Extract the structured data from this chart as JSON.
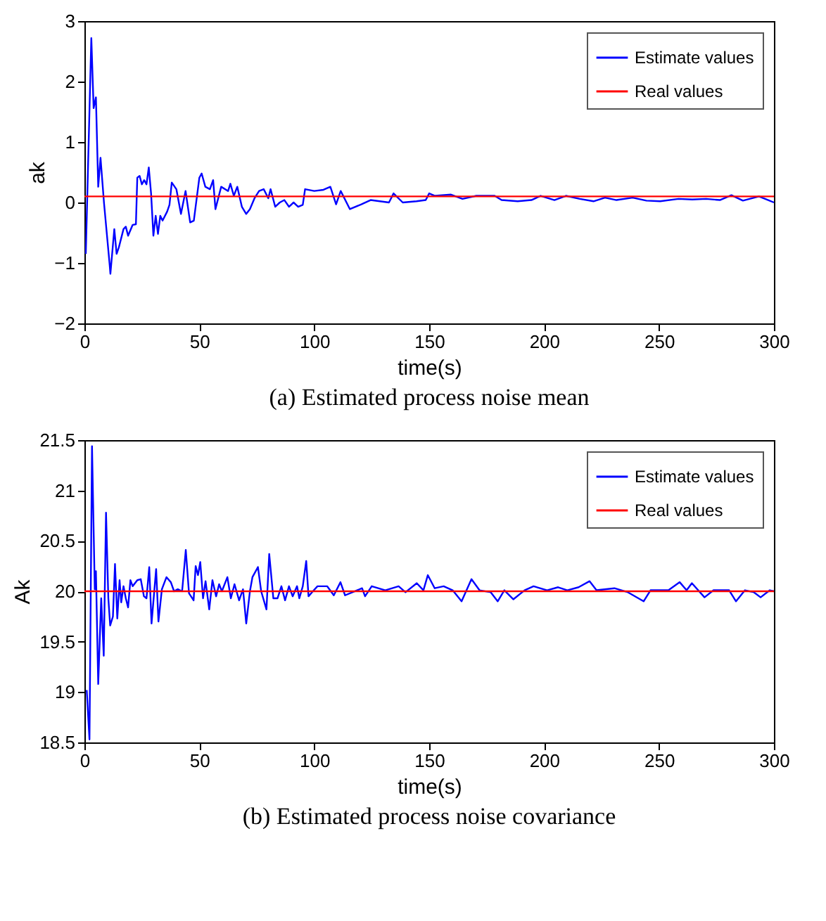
{
  "chart_data": [
    {
      "type": "line",
      "title": "(a) Estimated process noise mean",
      "xlabel": "time(s)",
      "ylabel": "ak",
      "xlim": [
        0,
        300
      ],
      "xticks": [
        0,
        50,
        100,
        150,
        200,
        250,
        300
      ],
      "ylim": [
        -2,
        3
      ],
      "yticks": [
        -2,
        -1,
        0,
        1,
        2,
        3
      ],
      "grid": false,
      "legend": "top right",
      "marker": "none",
      "line_style": "solid",
      "series": [
        {
          "name": "Estimate values",
          "color": "#0000ff",
          "x": [
            0.6,
            3,
            4,
            5,
            6,
            7,
            8.5,
            11,
            11.3,
            13,
            14,
            15,
            17,
            18,
            19,
            21,
            22.4,
            23,
            24,
            25,
            26,
            27,
            28,
            29,
            30,
            31,
            32,
            33,
            34,
            36,
            37,
            38,
            40,
            42,
            44,
            46,
            47.6,
            50,
            51,
            52.6,
            54.6,
            56,
            57,
            59.5,
            62.5,
            63.5,
            65,
            66.5,
            68.5,
            70.4,
            72,
            74,
            76,
            78,
            80,
            81,
            83,
            85,
            87,
            89,
            91,
            93,
            95,
            96,
            100,
            104,
            107,
            109.5,
            111.5,
            115.5,
            120.5,
            124.5,
            132.5,
            134.5,
            138.5,
            144.5,
            148.5,
            150,
            152.5,
            159.5,
            164.5,
            170.5,
            178.5,
            181.5,
            188.5,
            194.5,
            198.5,
            204.5,
            209.5,
            215.5,
            221.5,
            226.5,
            231.5,
            238.5,
            244.5,
            250.5,
            258.5,
            264.5,
            270.5,
            276.5,
            281.5,
            286.5,
            293.5,
            297.5,
            300
          ],
          "values": [
            -0.85,
            2.72,
            1.56,
            1.74,
            0.26,
            0.74,
            0,
            -1.04,
            -1.18,
            -0.44,
            -0.85,
            -0.74,
            -0.44,
            -0.4,
            -0.55,
            -0.37,
            -0.36,
            0.41,
            0.44,
            0.3,
            0.37,
            0.3,
            0.58,
            0.15,
            -0.55,
            -0.22,
            -0.52,
            -0.22,
            -0.3,
            -0.15,
            -0.04,
            0.33,
            0.22,
            -0.19,
            0.19,
            -0.33,
            -0.3,
            0.41,
            0.48,
            0.26,
            0.22,
            0.37,
            -0.11,
            0.26,
            0.19,
            0.31,
            0.11,
            0.26,
            -0.07,
            -0.19,
            -0.11,
            0.07,
            0.19,
            0.22,
            0.07,
            0.22,
            -0.07,
            0,
            0.04,
            -0.07,
            0,
            -0.07,
            -0.04,
            0.22,
            0.19,
            0.21,
            0.26,
            -0.03,
            0.19,
            -0.11,
            -0.03,
            0.04,
            0,
            0.15,
            0,
            0.02,
            0.04,
            0.15,
            0.11,
            0.13,
            0.06,
            0.11,
            0.11,
            0.04,
            0.02,
            0.04,
            0.11,
            0.04,
            0.11,
            0.06,
            0.02,
            0.08,
            0.04,
            0.08,
            0.03,
            0.02,
            0.06,
            0.05,
            0.06,
            0.04,
            0.12,
            0.03,
            0.1,
            0.04,
            0
          ]
        },
        {
          "name": "Real values",
          "color": "#ff0000",
          "x": [
            0,
            300
          ],
          "values": [
            0.1,
            0.1
          ]
        }
      ]
    },
    {
      "type": "line",
      "title": "(b) Estimated process noise covariance",
      "xlabel": "time(s)",
      "ylabel": "Ak",
      "xlim": [
        0,
        300
      ],
      "xticks": [
        0,
        50,
        100,
        150,
        200,
        250,
        300
      ],
      "ylim": [
        18.5,
        21.5
      ],
      "yticks": [
        18.5,
        19,
        19.5,
        20,
        20.5,
        21,
        21.5
      ],
      "grid": false,
      "legend": "top right",
      "marker": "none",
      "line_style": "solid",
      "series": [
        {
          "name": "Estimate values",
          "color": "#0000ff",
          "x": [
            1,
            2.2,
            3.3,
            4.5,
            5,
            6,
            7.3,
            8.4,
            9.4,
            10.4,
            11.2,
            12.4,
            13.3,
            14.3,
            15.3,
            16,
            17,
            18,
            19,
            20,
            21,
            23,
            24.5,
            25.9,
            27,
            28.2,
            29.2,
            31.2,
            32.2,
            33.7,
            35.7,
            37.6,
            39,
            40.6,
            42.5,
            44.1,
            45.5,
            47.5,
            48.4,
            49.4,
            50.4,
            51.6,
            52.7,
            54.3,
            55.7,
            57.3,
            58.6,
            59.8,
            62.2,
            63.7,
            65.3,
            67.3,
            69,
            70.4,
            72,
            73.1,
            75.5,
            76.9,
            79.2,
            80.4,
            82.2,
            84,
            85.7,
            87.3,
            89,
            90.6,
            92.5,
            93.5,
            95,
            96.5,
            97.5,
            99.4,
            101.4,
            105.6,
            108.5,
            111.4,
            113.4,
            120.8,
            122.1,
            125,
            130.9,
            136.7,
            139.7,
            144.6,
            147.5,
            149.4,
            152.4,
            156.3,
            160.2,
            164.1,
            168.4,
            171.9,
            176.8,
            179.8,
            182.7,
            186.6,
            191.5,
            195.4,
            201.3,
            206.1,
            210.1,
            215,
            219.8,
            222.8,
            230.6,
            236.5,
            243.3,
            246.3,
            254.1,
            259,
            262,
            264.3,
            269.8,
            273.7,
            280.5,
            283.5,
            287.4,
            291.3,
            294.2,
            298.2,
            300
          ],
          "values": [
            19.02,
            18.53,
            21.44,
            20.02,
            20.2,
            19.08,
            19.93,
            19.36,
            20.78,
            19.93,
            19.66,
            19.75,
            20.27,
            19.73,
            20.11,
            19.89,
            20.05,
            19.93,
            19.84,
            20.11,
            20.05,
            20.11,
            20.12,
            19.95,
            19.93,
            20.24,
            19.68,
            20.22,
            19.7,
            20.02,
            20.14,
            20.09,
            20,
            20.02,
            20,
            20.41,
            19.98,
            19.91,
            20.25,
            20.16,
            20.29,
            19.93,
            20.1,
            19.82,
            20.11,
            19.95,
            20.07,
            20,
            20.14,
            19.93,
            20.07,
            19.91,
            20.02,
            19.68,
            20,
            20.14,
            20.24,
            20,
            19.82,
            20.37,
            19.93,
            19.93,
            20.05,
            19.91,
            20.05,
            19.95,
            20.05,
            19.93,
            20.05,
            20.3,
            19.95,
            20,
            20.05,
            20.05,
            19.96,
            20.09,
            19.96,
            20.03,
            19.95,
            20.05,
            20.01,
            20.05,
            19.99,
            20.08,
            20.01,
            20.16,
            20.03,
            20.05,
            20.01,
            19.9,
            20.12,
            20.01,
            19.99,
            19.9,
            20.01,
            19.92,
            20.01,
            20.05,
            20.01,
            20.04,
            20.01,
            20.04,
            20.1,
            20.01,
            20.03,
            19.99,
            19.9,
            20.01,
            20.01,
            20.09,
            20.01,
            20.08,
            19.94,
            20.01,
            20.01,
            19.9,
            20.01,
            19.99,
            19.94,
            20.01,
            20
          ]
        },
        {
          "name": "Real values",
          "color": "#ff0000",
          "x": [
            0,
            300
          ],
          "values": [
            20,
            20
          ]
        }
      ]
    }
  ]
}
